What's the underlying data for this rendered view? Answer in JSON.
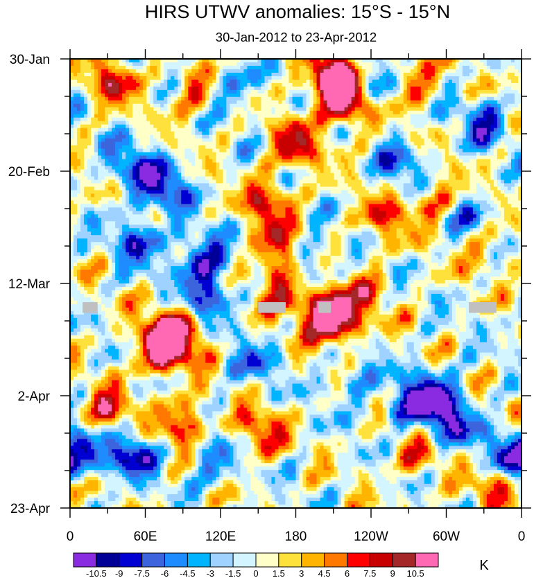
{
  "chart_data": {
    "type": "heatmap",
    "title": "HIRS UTWV anomalies: 15°S - 15°N",
    "subtitle": "30-Jan-2012 to 23-Apr-2012",
    "x_tick_labels": [
      "0",
      "60E",
      "120E",
      "180",
      "120W",
      "60W",
      "0"
    ],
    "x_tick_values_deg": [
      0,
      60,
      120,
      180,
      240,
      300,
      360
    ],
    "xlim": [
      0,
      360
    ],
    "y_tick_labels": [
      "30-Jan",
      "20-Feb",
      "12-Mar",
      "2-Apr",
      "23-Apr"
    ],
    "y_tick_values_day": [
      0,
      21,
      42,
      63,
      84
    ],
    "ylim": [
      0,
      84
    ],
    "colorbar_labels": [
      "-10.5",
      "-9",
      "-7.5",
      "-6",
      "-4.5",
      "-3",
      "-1.5",
      "0",
      "1.5",
      "3",
      "4.5",
      "6",
      "7.5",
      "9",
      "10.5"
    ],
    "colorbar_levels": [
      -10.5,
      -9,
      -7.5,
      -6,
      -4.5,
      -3,
      -1.5,
      0,
      1.5,
      3,
      4.5,
      6,
      7.5,
      9,
      10.5
    ],
    "colorbar_colors": [
      "#8a2be2",
      "#000096",
      "#0000d2",
      "#3c64dc",
      "#1e8cff",
      "#00b4ff",
      "#a0d2ff",
      "#d2f5ff",
      "#ffffc8",
      "#ffe13c",
      "#ffb400",
      "#ff7800",
      "#ff0000",
      "#c80000",
      "#a52828",
      "#ff69b4"
    ],
    "colorbar_unit": "K",
    "missing_color": "#c0c0c0",
    "missing_data": [
      {
        "lon_start": 10,
        "lon_end": 22,
        "day_start": 45.5,
        "day_end": 47.5
      },
      {
        "lon_start": 150,
        "lon_end": 172,
        "day_start": 45.5,
        "day_end": 47.5
      },
      {
        "lon_start": 198,
        "lon_end": 208,
        "day_start": 45.5,
        "day_end": 47.5
      },
      {
        "lon_start": 318,
        "lon_end": 340,
        "day_start": 45.5,
        "day_end": 47.5
      }
    ],
    "anomaly_features": [
      {
        "lon": 208,
        "day": 3,
        "value": 10.5
      },
      {
        "lon": 215,
        "day": 6,
        "value": 9
      },
      {
        "lon": 225,
        "day": 9,
        "value": 7
      },
      {
        "lon": 180,
        "day": 16,
        "value": 8
      },
      {
        "lon": 158,
        "day": 27,
        "value": 7.5
      },
      {
        "lon": 165,
        "day": 36,
        "value": 8
      },
      {
        "lon": 170,
        "day": 43,
        "value": 7.5
      },
      {
        "lon": 215,
        "day": 49,
        "value": 10.5
      },
      {
        "lon": 200,
        "day": 47,
        "value": 9
      },
      {
        "lon": 78,
        "day": 51,
        "value": 10.5
      },
      {
        "lon": 70,
        "day": 55,
        "value": 8
      },
      {
        "lon": 90,
        "day": 53,
        "value": 6
      },
      {
        "lon": 90,
        "day": 68,
        "value": 8
      },
      {
        "lon": 30,
        "day": 66,
        "value": 7.5
      },
      {
        "lon": 150,
        "day": 70,
        "value": 7.5
      },
      {
        "lon": 272,
        "day": 4,
        "value": 7.5
      },
      {
        "lon": 35,
        "day": 4,
        "value": 7.5
      },
      {
        "lon": 100,
        "day": 6,
        "value": 6
      },
      {
        "lon": 250,
        "day": 30,
        "value": 6
      },
      {
        "lon": 235,
        "day": 44,
        "value": 4.5
      },
      {
        "lon": 330,
        "day": 35,
        "value": 4.5
      },
      {
        "lon": 340,
        "day": 80,
        "value": 6
      },
      {
        "lon": 288,
        "day": 26,
        "value": 6
      },
      {
        "lon": 275,
        "day": 74,
        "value": 5
      },
      {
        "lon": 75,
        "day": 24,
        "value": -9
      },
      {
        "lon": 105,
        "day": 37,
        "value": -9
      },
      {
        "lon": 110,
        "day": 44,
        "value": -8
      },
      {
        "lon": 55,
        "day": 34,
        "value": -7.5
      },
      {
        "lon": 290,
        "day": 63,
        "value": -9
      },
      {
        "lon": 305,
        "day": 68,
        "value": -8
      },
      {
        "lon": 270,
        "day": 65,
        "value": -7.5
      },
      {
        "lon": 48,
        "day": 20,
        "value": -7
      },
      {
        "lon": 50,
        "day": 74,
        "value": -9
      },
      {
        "lon": 115,
        "day": 75,
        "value": -6
      },
      {
        "lon": 245,
        "day": 5,
        "value": -7.5
      },
      {
        "lon": 330,
        "day": 12,
        "value": -7
      },
      {
        "lon": 265,
        "day": 20,
        "value": -6.5
      },
      {
        "lon": 190,
        "day": 38,
        "value": -6
      },
      {
        "lon": 350,
        "day": 74,
        "value": -7.5
      },
      {
        "lon": 130,
        "day": 5,
        "value": -6
      },
      {
        "lon": 145,
        "day": 57,
        "value": -5
      },
      {
        "lon": 10,
        "day": 74,
        "value": -7
      },
      {
        "lon": 225,
        "day": 60,
        "value": -4.5
      },
      {
        "lon": 320,
        "day": 30,
        "value": -5
      }
    ]
  }
}
